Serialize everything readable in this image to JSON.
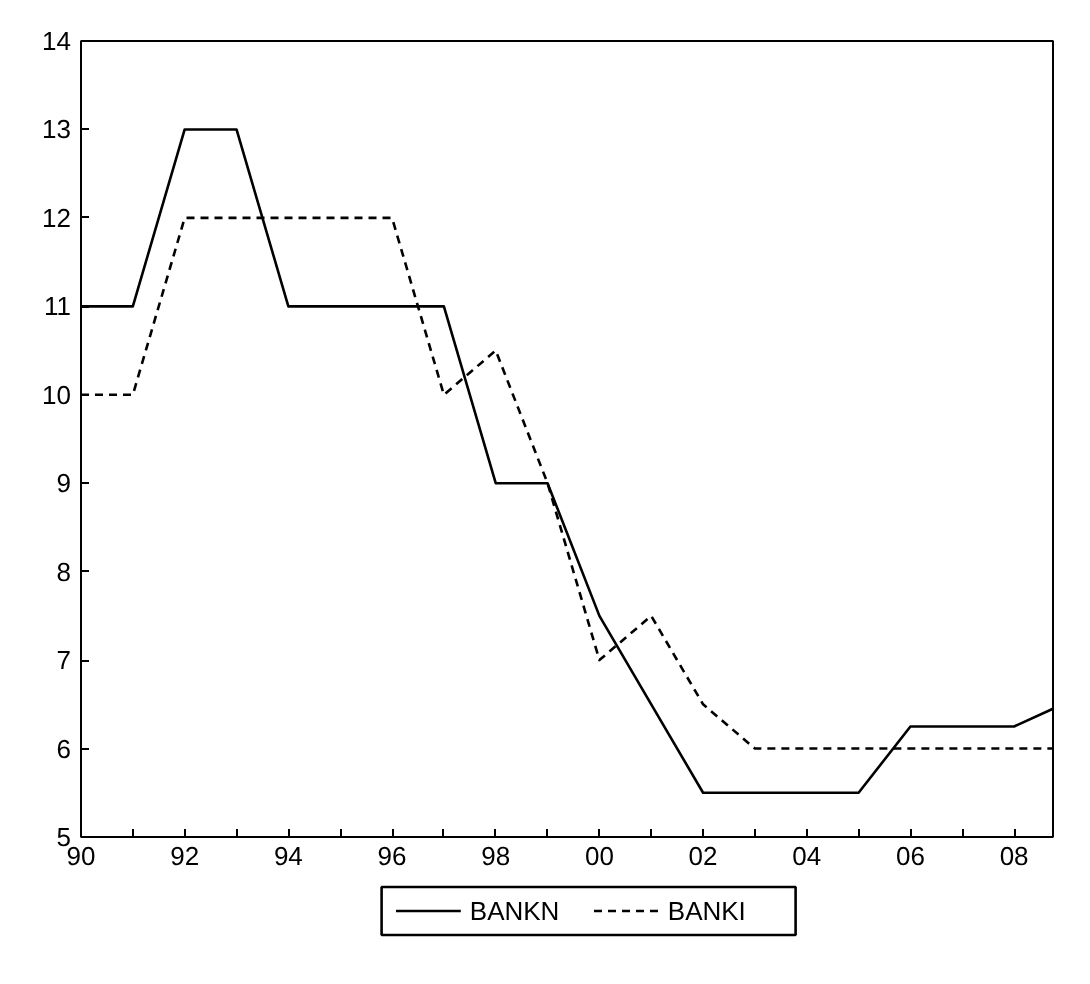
{
  "chart_data": {
    "type": "line",
    "x": [
      1990,
      1991,
      1992,
      1993,
      1994,
      1995,
      1996,
      1997,
      1998,
      1999,
      2000,
      2001,
      2002,
      2003,
      2004,
      2005,
      2006,
      2007,
      2008,
      2008.75
    ],
    "series": [
      {
        "name": "BANKN",
        "color": "#000000",
        "line_style": "solid",
        "values": [
          11,
          11,
          13,
          13,
          11,
          11,
          11,
          11,
          9,
          9,
          7.5,
          6.5,
          5.5,
          5.5,
          5.5,
          5.5,
          6.25,
          6.25,
          6.25,
          6.45
        ]
      },
      {
        "name": "BANKI",
        "color": "#000000",
        "line_style": "dashed",
        "values": [
          10,
          10,
          12,
          12,
          12,
          12,
          12,
          10,
          10.5,
          9,
          7,
          7.5,
          6.5,
          6,
          6,
          6,
          6,
          6,
          6,
          6
        ]
      }
    ],
    "xlim": [
      1990,
      2008.75
    ],
    "xticks": [
      {
        "value": 1990,
        "label": "90"
      },
      {
        "value": 1991,
        "label": null
      },
      {
        "value": 1992,
        "label": "92"
      },
      {
        "value": 1993,
        "label": null
      },
      {
        "value": 1994,
        "label": "94"
      },
      {
        "value": 1995,
        "label": null
      },
      {
        "value": 1996,
        "label": "96"
      },
      {
        "value": 1997,
        "label": null
      },
      {
        "value": 1998,
        "label": "98"
      },
      {
        "value": 1999,
        "label": null
      },
      {
        "value": 2000,
        "label": "00"
      },
      {
        "value": 2001,
        "label": null
      },
      {
        "value": 2002,
        "label": "02"
      },
      {
        "value": 2003,
        "label": null
      },
      {
        "value": 2004,
        "label": "04"
      },
      {
        "value": 2005,
        "label": null
      },
      {
        "value": 2006,
        "label": "06"
      },
      {
        "value": 2007,
        "label": null
      },
      {
        "value": 2008,
        "label": "08"
      }
    ],
    "ylim": [
      5,
      14
    ],
    "yticks": [
      5,
      6,
      7,
      8,
      9,
      10,
      11,
      12,
      13,
      14
    ],
    "grid": false,
    "legend": "bottom",
    "marker": "none"
  }
}
